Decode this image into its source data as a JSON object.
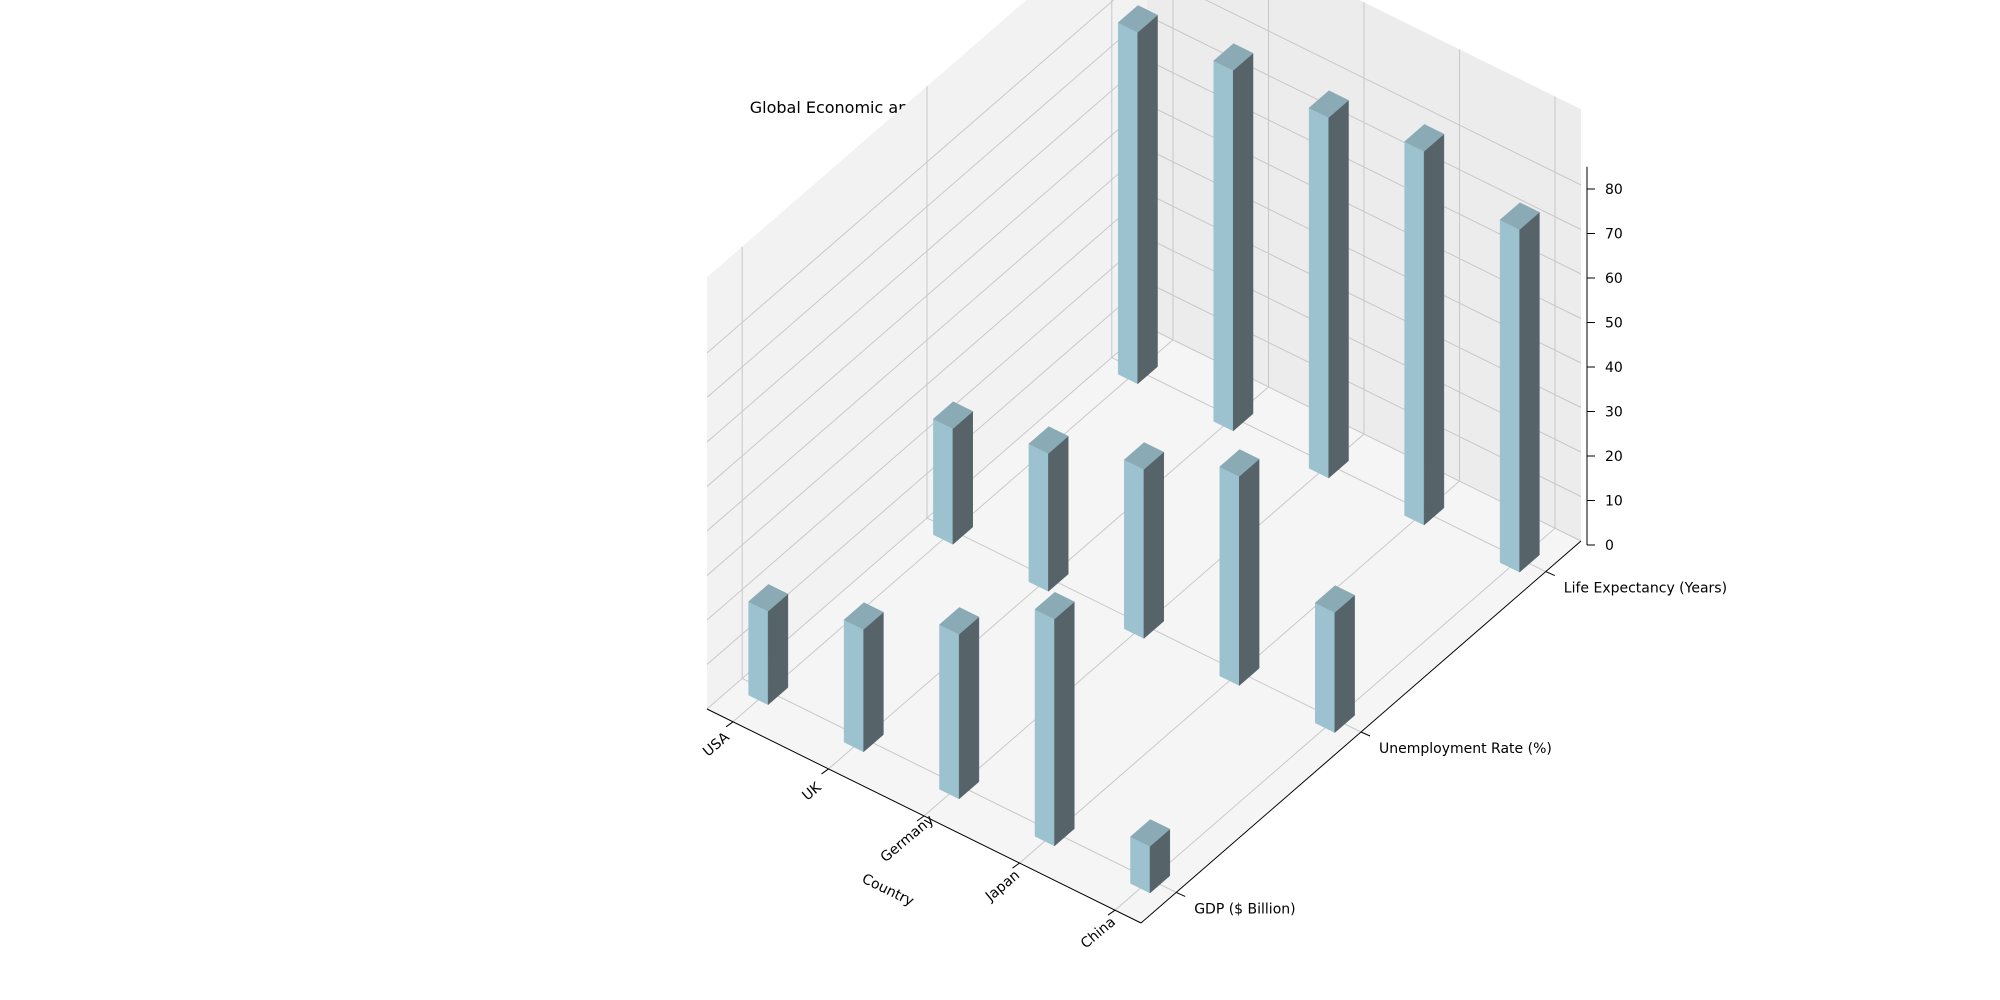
{
  "chart_data": {
    "type": "bar3d",
    "title": "Global Economic and Health Trends in Social Sciences and Humanities",
    "xlabel": "Country",
    "ylabel": "",
    "zlabel": "",
    "categories": [
      "USA",
      "UK",
      "Germany",
      "Japan",
      "China"
    ],
    "series": [
      {
        "name": "GDP ($ Billion)",
        "values": [
          21,
          27.5,
          37,
          51,
          10.5
        ]
      },
      {
        "name": "Unemployment Rate (%)",
        "values": [
          26,
          31,
          38,
          47,
          27
        ]
      },
      {
        "name": "Life Expectancy (Years)",
        "values": [
          79,
          81,
          81,
          84,
          77
        ]
      }
    ],
    "zlim": [
      0,
      85
    ],
    "zticks": [
      0,
      10,
      20,
      30,
      40,
      50,
      60,
      70,
      80
    ],
    "grid": true,
    "colors": {
      "bar_front": "#9cc2cf",
      "bar_side": "#56646a",
      "bar_top": "#8aaab5",
      "pane_back": "#ececec",
      "pane_side": "#f2f2f2",
      "pane_floor": "#f5f5f5",
      "grid": "#c8c8c8",
      "axis": "#000000"
    }
  }
}
